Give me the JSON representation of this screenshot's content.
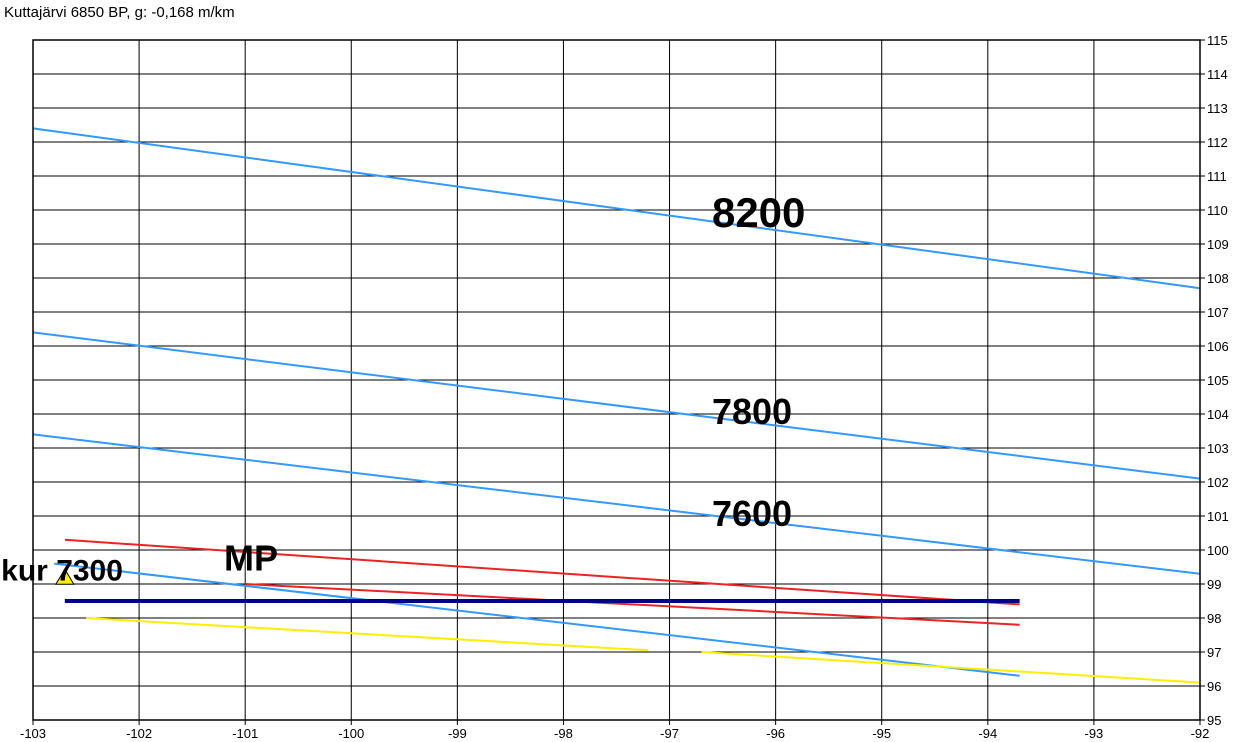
{
  "chart_data": {
    "type": "line",
    "title": "Kuttajärvi  6850 BP, g: -0,168 m/km",
    "xlim": [
      -103,
      -92
    ],
    "ylim": [
      95,
      115
    ],
    "x_ticks": [
      -103,
      -102,
      -101,
      -100,
      -99,
      -98,
      -97,
      -96,
      -95,
      -94,
      -93,
      -92
    ],
    "y_ticks": [
      95,
      96,
      97,
      98,
      99,
      100,
      101,
      102,
      103,
      104,
      105,
      106,
      107,
      108,
      109,
      110,
      111,
      112,
      113,
      114,
      115
    ],
    "grid": true,
    "y_axis_side": "right",
    "series": [
      {
        "color": "#3399ff",
        "width": 2,
        "points": [
          [
            -103,
            112.4
          ],
          [
            -92,
            107.7
          ]
        ]
      },
      {
        "color": "#3399ff",
        "width": 2,
        "points": [
          [
            -103,
            106.4
          ],
          [
            -92,
            102.1
          ]
        ]
      },
      {
        "color": "#3399ff",
        "width": 2,
        "points": [
          [
            -103,
            103.4
          ],
          [
            -92,
            99.3
          ]
        ]
      },
      {
        "color": "#3399ff",
        "width": 2,
        "points": [
          [
            -102.8,
            99.6
          ],
          [
            -93.7,
            96.3
          ]
        ]
      },
      {
        "color": "#ee2222",
        "width": 2,
        "points": [
          [
            -102.7,
            100.3
          ],
          [
            -93.7,
            98.4
          ]
        ]
      },
      {
        "color": "#ee2222",
        "width": 2,
        "points": [
          [
            -101,
            99.0
          ],
          [
            -93.7,
            97.8
          ]
        ]
      },
      {
        "color": "#ffee00",
        "width": 2,
        "points": [
          [
            -102.5,
            98.0
          ],
          [
            -97.2,
            97.05
          ]
        ]
      },
      {
        "color": "#ffee00",
        "width": 2,
        "points": [
          [
            -96.7,
            97.0
          ],
          [
            -92,
            96.1
          ]
        ]
      },
      {
        "color": "#000088",
        "width": 4,
        "points": [
          [
            -102.7,
            98.5
          ],
          [
            -93.7,
            98.5
          ]
        ]
      }
    ],
    "annotations": [
      {
        "text": "8200",
        "x": -96.6,
        "y": 109.5,
        "size": 42
      },
      {
        "text": "7800",
        "x": -96.6,
        "y": 103.7,
        "size": 36
      },
      {
        "text": "7600",
        "x": -96.6,
        "y": 100.7,
        "size": 36
      },
      {
        "text": "MP",
        "x": -101.2,
        "y": 99.4,
        "size": 36
      },
      {
        "text": "kur 7300",
        "x": -103.3,
        "y": 99.1,
        "size": 30
      }
    ],
    "marker": {
      "shape": "triangle",
      "color": "#ffee00",
      "x": -102.7,
      "y": 99.2
    }
  }
}
